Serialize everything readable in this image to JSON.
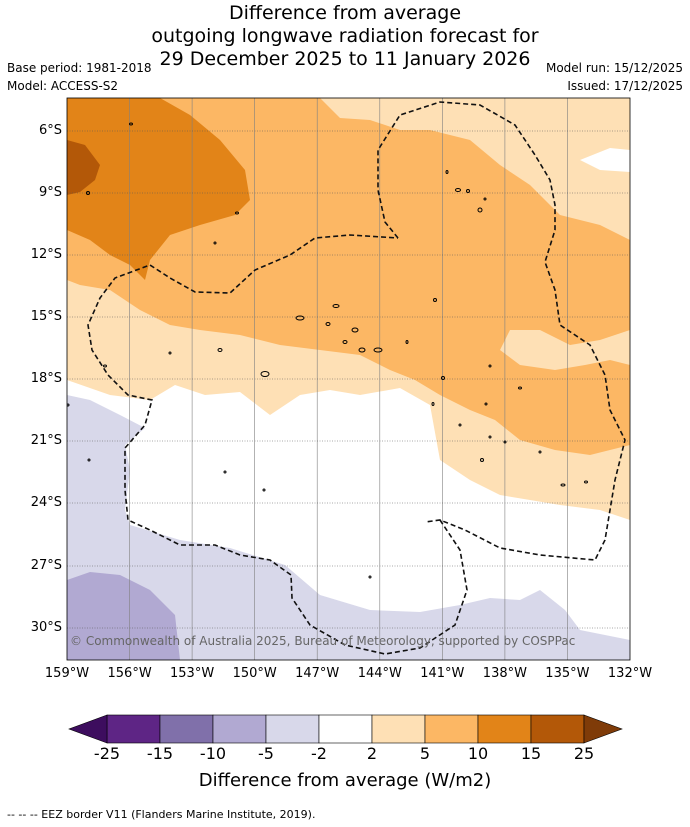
{
  "title": {
    "line1": "Difference from average",
    "line2": "outgoing longwave radiation forecast for",
    "line3": "29 December 2025 to 11 January 2026"
  },
  "meta": {
    "base_period": "Base period: 1981-2018",
    "model": "Model: ACCESS-S2",
    "model_run": "Model run: 15/12/2025",
    "issued": "Issued: 17/12/2025"
  },
  "lat_labels": [
    "6°S",
    "9°S",
    "12°S",
    "15°S",
    "18°S",
    "21°S",
    "24°S",
    "27°S",
    "30°S"
  ],
  "lon_labels": [
    "159°W",
    "156°W",
    "153°W",
    "150°W",
    "147°W",
    "144°W",
    "141°W",
    "138°W",
    "135°W",
    "132°W"
  ],
  "copyright": "© Commonwealth of Australia 2025, Bureau of Meteorology, supported by COSPPac",
  "colorbar": {
    "ticks": [
      "-25",
      "-15",
      "-10",
      "-5",
      "-2",
      "2",
      "5",
      "10",
      "15",
      "25"
    ],
    "label": "Difference from average (W/m2)",
    "colors": {
      "below_-25": "#3d0d5e",
      "-25_-15": "#5e2585",
      "-15_-10": "#8070aa",
      "-10_-5": "#b1a9d2",
      "-5_-2": "#d8d8ea",
      "-2_2": "#ffffff",
      "2_5": "#fee0b5",
      "5_10": "#fcb764",
      "10_15": "#e28418",
      "15_25": "#b35808",
      "above_25": "#7f3b08"
    }
  },
  "footer": "-- -- -- EEZ border V11 (Flanders Marine Institute, 2019)."
}
